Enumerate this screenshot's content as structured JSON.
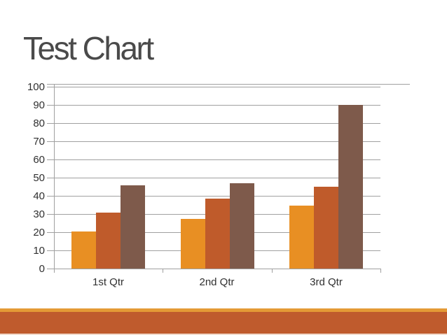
{
  "slide": {
    "title": "Test Chart"
  },
  "colors": {
    "background": "#ffffff",
    "title_text": "#4a4a4a",
    "axis_text": "#303030",
    "gridline": "#a0a0a0",
    "footer_stripe": "#e49a36",
    "footer_band": "#bf5b2d",
    "footer_bottom_edge": "#f2dbcd"
  },
  "chart_data": {
    "type": "bar",
    "title": "",
    "xlabel": "",
    "ylabel": "",
    "categories": [
      "1st Qtr",
      "2nd Qtr",
      "3rd Qtr"
    ],
    "series": [
      {
        "color": "#e88f23",
        "values": [
          20.4,
          27.4,
          34.6
        ]
      },
      {
        "color": "#bf5b2b",
        "values": [
          30.6,
          38.6,
          45.0
        ]
      },
      {
        "color": "#7e5a4b",
        "values": [
          45.9,
          46.9,
          90.0
        ]
      }
    ],
    "ylim": [
      0,
      100
    ],
    "yticks": [
      0,
      10,
      20,
      30,
      40,
      50,
      60,
      70,
      80,
      90,
      100
    ],
    "grid": true,
    "legend": false
  }
}
